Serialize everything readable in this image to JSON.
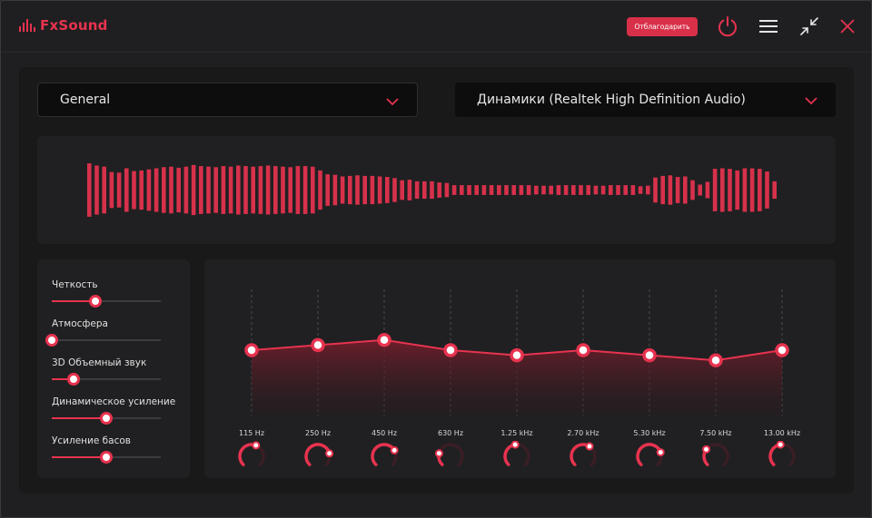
{
  "app": {
    "name": "FxSound",
    "thank_button": "Отблагодарить"
  },
  "icons": {
    "logo": "equalizer-bars-icon",
    "power": "power-icon",
    "menu": "hamburger-menu-icon",
    "minimize": "shrink-arrows-icon",
    "close": "close-icon",
    "dropdown": "chevron-down-icon"
  },
  "colors": {
    "accent": "#e7334f",
    "background": "#1f1f21",
    "panel": "#202022"
  },
  "preset": {
    "selected": "General"
  },
  "output_device": {
    "selected": "Динамики (Realtek High Definition Audio)"
  },
  "visualizer": {
    "levels": [
      0.49,
      0.45,
      0.43,
      0.33,
      0.32,
      0.4,
      0.35,
      0.36,
      0.38,
      0.4,
      0.42,
      0.43,
      0.41,
      0.43,
      0.46,
      0.44,
      0.43,
      0.42,
      0.44,
      0.43,
      0.45,
      0.44,
      0.43,
      0.44,
      0.45,
      0.44,
      0.43,
      0.42,
      0.44,
      0.44,
      0.43,
      0.36,
      0.29,
      0.28,
      0.25,
      0.26,
      0.27,
      0.26,
      0.26,
      0.25,
      0.24,
      0.22,
      0.18,
      0.19,
      0.16,
      0.16,
      0.16,
      0.14,
      0.13,
      0.09,
      0.09,
      0.09,
      0.09,
      0.09,
      0.09,
      0.09,
      0.09,
      0.09,
      0.09,
      0.09,
      0.08,
      0.08,
      0.08,
      0.09,
      0.09,
      0.09,
      0.09,
      0.09,
      0.08,
      0.08,
      0.09,
      0.09,
      0.09,
      0.09,
      0.07,
      0.08,
      0.23,
      0.26,
      0.27,
      0.24,
      0.25,
      0.18,
      0.1,
      0.15,
      0.39,
      0.4,
      0.39,
      0.36,
      0.4,
      0.4,
      0.39,
      0.34,
      0.16
    ]
  },
  "effects": [
    {
      "label": "Четкость",
      "value": 0.4
    },
    {
      "label": "Атмосфера",
      "value": 0.0
    },
    {
      "label": "3D Объемный звук",
      "value": 0.2
    },
    {
      "label": "Динамическое усиление",
      "value": 0.5
    },
    {
      "label": "Усиление басов",
      "value": 0.5
    }
  ],
  "equalizer": {
    "range_db": [
      -12,
      12
    ],
    "bands": [
      {
        "label": "115 Hz",
        "gain": 0
      },
      {
        "label": "250 Hz",
        "gain": 1
      },
      {
        "label": "450 Hz",
        "gain": 2
      },
      {
        "label": "630 Hz",
        "gain": 0
      },
      {
        "label": "1.25 kHz",
        "gain": -1
      },
      {
        "label": "2.70 kHz",
        "gain": 0
      },
      {
        "label": "5.30 kHz",
        "gain": -1
      },
      {
        "label": "7.50 kHz",
        "gain": -2
      },
      {
        "label": "13.00 kHz",
        "gain": 0
      }
    ],
    "knobs": [
      {
        "band": "115 Hz",
        "level": 0.58
      },
      {
        "band": "250 Hz",
        "level": 0.78
      },
      {
        "band": "450 Hz",
        "level": 0.72
      },
      {
        "band": "630 Hz",
        "level": 0.22
      },
      {
        "band": "1.25 kHz",
        "level": 0.47
      },
      {
        "band": "2.70 kHz",
        "level": 0.62
      },
      {
        "band": "5.30 kHz",
        "level": 0.76
      },
      {
        "band": "7.50 kHz",
        "level": 0.3
      },
      {
        "band": "13.00 kHz",
        "level": 0.47
      }
    ]
  }
}
